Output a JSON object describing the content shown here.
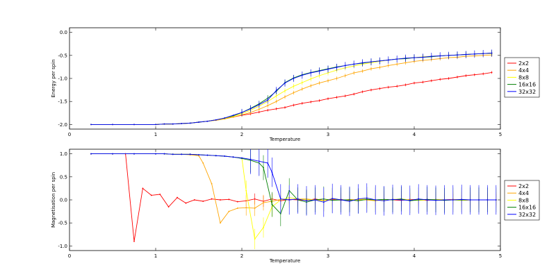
{
  "chart_data": [
    {
      "type": "line",
      "xlabel": "Temperature",
      "ylabel": "Energy per spin",
      "xlim": [
        0,
        5
      ],
      "ylim": [
        -2.1,
        0.1
      ],
      "xticks": [
        0,
        1,
        2,
        3,
        4,
        5
      ],
      "yticks": [
        0.0,
        -0.5,
        -1.0,
        -1.5,
        -2.0
      ],
      "xtick_labels": [
        "0",
        "1",
        "2",
        "3",
        "4",
        "5"
      ],
      "ytick_labels": [
        "0.0",
        "-0.5",
        "-1.0",
        "-1.5",
        "-2.0"
      ],
      "legend_position": "right",
      "series": [
        {
          "name": "2x2",
          "color": "#ff0000",
          "x": [
            0.25,
            0.5,
            0.75,
            1.0,
            1.1,
            1.2,
            1.3,
            1.4,
            1.5,
            1.6,
            1.7,
            1.8,
            1.9,
            2.0,
            2.1,
            2.2,
            2.3,
            2.4,
            2.5,
            2.6,
            2.7,
            2.8,
            2.9,
            3.0,
            3.1,
            3.2,
            3.3,
            3.4,
            3.5,
            3.6,
            3.7,
            3.8,
            3.9,
            4.0,
            4.1,
            4.2,
            4.3,
            4.4,
            4.5,
            4.6,
            4.7,
            4.8,
            4.9
          ],
          "y": [
            -2.0,
            -2.0,
            -2.0,
            -2.0,
            -1.99,
            -1.99,
            -1.98,
            -1.97,
            -1.95,
            -1.93,
            -1.9,
            -1.87,
            -1.84,
            -1.8,
            -1.77,
            -1.73,
            -1.69,
            -1.66,
            -1.63,
            -1.58,
            -1.54,
            -1.51,
            -1.48,
            -1.44,
            -1.41,
            -1.38,
            -1.34,
            -1.29,
            -1.25,
            -1.22,
            -1.19,
            -1.17,
            -1.14,
            -1.1,
            -1.08,
            -1.05,
            -1.02,
            -1.0,
            -0.97,
            -0.94,
            -0.92,
            -0.9,
            -0.87
          ]
        },
        {
          "name": "4x4",
          "color": "#ffa500",
          "x": [
            0.25,
            0.5,
            0.75,
            1.0,
            1.1,
            1.2,
            1.3,
            1.4,
            1.5,
            1.6,
            1.7,
            1.8,
            1.9,
            2.0,
            2.1,
            2.2,
            2.3,
            2.4,
            2.5,
            2.6,
            2.7,
            2.8,
            2.9,
            3.0,
            3.1,
            3.2,
            3.3,
            3.4,
            3.5,
            3.6,
            3.7,
            3.8,
            3.9,
            4.0,
            4.1,
            4.2,
            4.3,
            4.4,
            4.5,
            4.6,
            4.7,
            4.8,
            4.9
          ],
          "y": [
            -2.0,
            -2.0,
            -2.0,
            -2.0,
            -1.99,
            -1.99,
            -1.98,
            -1.97,
            -1.95,
            -1.93,
            -1.91,
            -1.88,
            -1.84,
            -1.79,
            -1.74,
            -1.67,
            -1.59,
            -1.5,
            -1.4,
            -1.31,
            -1.23,
            -1.16,
            -1.1,
            -1.05,
            -1.0,
            -0.94,
            -0.88,
            -0.84,
            -0.79,
            -0.76,
            -0.72,
            -0.69,
            -0.66,
            -0.63,
            -0.61,
            -0.59,
            -0.57,
            -0.55,
            -0.54,
            -0.52,
            -0.51,
            -0.5,
            -0.49
          ]
        },
        {
          "name": "8x8",
          "color": "#ffff00",
          "x": [
            0.25,
            0.5,
            0.75,
            1.0,
            1.1,
            1.2,
            1.3,
            1.4,
            1.5,
            1.6,
            1.7,
            1.8,
            1.9,
            2.0,
            2.1,
            2.2,
            2.3,
            2.4,
            2.5,
            2.6,
            2.7,
            2.8,
            2.9,
            3.0,
            3.1,
            3.2,
            3.3,
            3.4,
            3.5,
            3.6,
            3.7,
            3.8,
            3.9,
            4.0,
            4.1,
            4.2,
            4.3,
            4.4,
            4.5,
            4.6,
            4.7,
            4.8,
            4.9
          ],
          "y": [
            -2.0,
            -2.0,
            -2.0,
            -2.0,
            -1.99,
            -1.99,
            -1.98,
            -1.97,
            -1.95,
            -1.93,
            -1.9,
            -1.87,
            -1.82,
            -1.76,
            -1.69,
            -1.6,
            -1.5,
            -1.38,
            -1.27,
            -1.17,
            -1.09,
            -1.01,
            -0.94,
            -0.88,
            -0.82,
            -0.77,
            -0.73,
            -0.69,
            -0.66,
            -0.63,
            -0.6,
            -0.58,
            -0.56,
            -0.55,
            -0.53,
            -0.52,
            -0.51,
            -0.5,
            -0.49,
            -0.48,
            -0.47,
            -0.46,
            -0.46
          ]
        },
        {
          "name": "16x16",
          "color": "#008000",
          "x": [
            0.25,
            0.5,
            0.75,
            1.0,
            1.1,
            1.2,
            1.3,
            1.4,
            1.5,
            1.6,
            1.7,
            1.8,
            1.9,
            2.0,
            2.1,
            2.2,
            2.3,
            2.4,
            2.5,
            2.6,
            2.7,
            2.8,
            2.9,
            3.0,
            3.1,
            3.2,
            3.3,
            3.4,
            3.5,
            3.6,
            3.7,
            3.8,
            3.9,
            4.0,
            4.1,
            4.2,
            4.3,
            4.4,
            4.5,
            4.6,
            4.7,
            4.8,
            4.9
          ],
          "y": [
            -2.0,
            -2.0,
            -2.0,
            -2.0,
            -1.99,
            -1.99,
            -1.98,
            -1.97,
            -1.95,
            -1.93,
            -1.9,
            -1.86,
            -1.81,
            -1.74,
            -1.65,
            -1.55,
            -1.43,
            -1.28,
            -1.09,
            -0.99,
            -0.92,
            -0.87,
            -0.83,
            -0.79,
            -0.75,
            -0.72,
            -0.69,
            -0.67,
            -0.64,
            -0.62,
            -0.6,
            -0.58,
            -0.57,
            -0.55,
            -0.54,
            -0.53,
            -0.51,
            -0.5,
            -0.49,
            -0.48,
            -0.47,
            -0.46,
            -0.45
          ]
        },
        {
          "name": "32x32",
          "color": "#0000ff",
          "x": [
            0.25,
            0.5,
            0.75,
            1.0,
            1.1,
            1.2,
            1.3,
            1.4,
            1.5,
            1.6,
            1.7,
            1.8,
            1.9,
            2.0,
            2.1,
            2.2,
            2.3,
            2.4,
            2.5,
            2.6,
            2.7,
            2.8,
            2.9,
            3.0,
            3.1,
            3.2,
            3.3,
            3.4,
            3.5,
            3.6,
            3.7,
            3.8,
            3.9,
            4.0,
            4.1,
            4.2,
            4.3,
            4.4,
            4.5,
            4.6,
            4.7,
            4.8,
            4.9
          ],
          "y": [
            -2.0,
            -2.0,
            -2.0,
            -2.0,
            -1.99,
            -1.99,
            -1.98,
            -1.97,
            -1.95,
            -1.93,
            -1.9,
            -1.86,
            -1.8,
            -1.74,
            -1.66,
            -1.57,
            -1.47,
            -1.26,
            -1.1,
            -1.0,
            -0.93,
            -0.88,
            -0.84,
            -0.8,
            -0.76,
            -0.72,
            -0.69,
            -0.66,
            -0.64,
            -0.62,
            -0.6,
            -0.58,
            -0.56,
            -0.55,
            -0.54,
            -0.52,
            -0.51,
            -0.5,
            -0.49,
            -0.48,
            -0.47,
            -0.46,
            -0.45
          ]
        }
      ]
    },
    {
      "type": "line",
      "xlabel": "Temperature",
      "ylabel": "Magnetisation per spin",
      "xlim": [
        0,
        5
      ],
      "ylim": [
        -1.1,
        1.1
      ],
      "xticks": [
        0,
        1,
        2,
        3,
        4,
        5
      ],
      "yticks": [
        1.0,
        0.5,
        0.0,
        -0.5,
        -1.0
      ],
      "xtick_labels": [
        "0",
        "1",
        "2",
        "3",
        "4",
        "5"
      ],
      "ytick_labels": [
        "1.0",
        "0.5",
        "0.0",
        "-0.5",
        "-1.0"
      ],
      "legend_position": "right",
      "series": [
        {
          "name": "2x2",
          "color": "#ff0000",
          "x": [
            0.25,
            0.5,
            0.65,
            0.75,
            0.85,
            0.95,
            1.05,
            1.15,
            1.25,
            1.35,
            1.45,
            1.55,
            1.65,
            1.75,
            1.85,
            1.95,
            2.05,
            2.15,
            2.25,
            2.35,
            2.45,
            2.55,
            2.65,
            2.75,
            2.85,
            2.95,
            3.05,
            3.15,
            3.25,
            3.35,
            3.45,
            3.55,
            3.65,
            3.75,
            3.85,
            3.95,
            4.05,
            4.15,
            4.25,
            4.35,
            4.45,
            4.55,
            4.65,
            4.75,
            4.85,
            4.95
          ],
          "y": [
            1.0,
            1.0,
            1.0,
            -0.9,
            0.25,
            0.1,
            0.12,
            -0.15,
            0.05,
            -0.07,
            0.0,
            -0.03,
            0.02,
            0.0,
            0.01,
            -0.04,
            -0.02,
            0.02,
            -0.03,
            0.02,
            -0.02,
            0.01,
            0.0,
            -0.01,
            0.02,
            -0.01,
            0.0,
            0.01,
            -0.02,
            0.01,
            0.0,
            -0.01,
            0.01,
            0.0,
            -0.01,
            0.01,
            0.0,
            -0.01,
            0.01,
            0.0,
            0.01,
            -0.01,
            0.0,
            0.0,
            0.0,
            0.0
          ]
        },
        {
          "name": "4x4",
          "color": "#ffa500",
          "x": [
            0.25,
            0.5,
            0.75,
            1.0,
            1.1,
            1.2,
            1.3,
            1.4,
            1.5,
            1.55,
            1.65,
            1.75,
            1.85,
            1.95,
            2.05,
            2.15,
            2.25,
            2.35,
            2.45,
            2.55,
            2.65,
            2.75,
            2.85,
            2.95,
            3.05,
            3.15,
            3.25,
            3.35,
            3.45,
            3.55,
            3.65,
            3.75,
            3.85,
            3.95,
            4.05,
            4.15,
            4.25,
            4.35,
            4.45,
            4.55,
            4.65,
            4.75,
            4.85,
            4.95
          ],
          "y": [
            1.0,
            1.0,
            1.0,
            1.0,
            1.0,
            0.99,
            0.99,
            0.98,
            0.96,
            0.8,
            0.35,
            -0.5,
            -0.25,
            -0.18,
            -0.17,
            -0.18,
            -0.06,
            -0.03,
            0.01,
            0.0,
            0.02,
            0.02,
            0.0,
            -0.01,
            0.02,
            -0.01,
            0.01,
            0.0,
            0.0,
            -0.02,
            0.01,
            0.0,
            0.02,
            -0.01,
            0.0,
            0.01,
            0.0,
            -0.01,
            0.01,
            0.0,
            0.0,
            0.0,
            0.0,
            0.0
          ]
        },
        {
          "name": "8x8",
          "color": "#ffff00",
          "x": [
            0.25,
            0.5,
            0.75,
            1.0,
            1.1,
            1.2,
            1.3,
            1.4,
            1.5,
            1.6,
            1.7,
            1.8,
            1.9,
            2.0,
            2.05,
            2.15,
            2.25,
            2.35,
            2.45,
            2.55,
            2.65,
            2.75,
            2.85,
            2.95,
            3.05,
            3.15,
            3.25,
            3.35,
            3.45,
            3.55,
            3.65,
            3.75,
            3.85,
            3.95,
            4.05,
            4.15,
            4.25,
            4.35,
            4.45,
            4.55,
            4.65,
            4.75,
            4.85,
            4.95
          ],
          "y": [
            1.0,
            1.0,
            1.0,
            1.0,
            1.0,
            0.99,
            0.99,
            0.99,
            0.98,
            0.97,
            0.96,
            0.95,
            0.93,
            0.91,
            0.2,
            -0.85,
            -0.6,
            -0.15,
            0.0,
            0.05,
            0.02,
            0.0,
            0.0,
            -0.02,
            0.03,
            0.0,
            -0.02,
            0.01,
            0.02,
            -0.01,
            0.0,
            0.01,
            0.02,
            0.0,
            -0.01,
            0.0,
            0.01,
            0.0,
            0.0,
            -0.01,
            0.0,
            0.0,
            0.0,
            0.0
          ]
        },
        {
          "name": "16x16",
          "color": "#008000",
          "x": [
            0.25,
            0.5,
            0.75,
            1.0,
            1.1,
            1.2,
            1.3,
            1.4,
            1.5,
            1.6,
            1.7,
            1.8,
            1.9,
            2.0,
            2.1,
            2.2,
            2.25,
            2.35,
            2.45,
            2.55,
            2.65,
            2.75,
            2.85,
            2.95,
            3.05,
            3.15,
            3.25,
            3.35,
            3.45,
            3.55,
            3.65,
            3.75,
            3.85,
            3.95,
            4.05,
            4.15,
            4.25,
            4.35,
            4.45,
            4.55,
            4.65,
            4.75,
            4.85,
            4.95
          ],
          "y": [
            1.0,
            1.0,
            1.0,
            1.0,
            1.0,
            0.99,
            0.99,
            0.99,
            0.98,
            0.97,
            0.96,
            0.95,
            0.93,
            0.9,
            0.86,
            0.8,
            0.7,
            -0.1,
            -0.3,
            0.2,
            0.0,
            -0.05,
            0.0,
            0.02,
            -0.01,
            0.0,
            0.0,
            -0.02,
            0.01,
            0.0,
            0.01,
            0.0,
            0.02,
            -0.02,
            0.0,
            0.01,
            0.0,
            -0.01,
            0.0,
            0.0,
            0.0,
            0.0,
            0.0,
            0.0
          ]
        },
        {
          "name": "32x32",
          "color": "#0000ff",
          "x": [
            0.25,
            0.5,
            0.75,
            1.0,
            1.1,
            1.2,
            1.3,
            1.4,
            1.5,
            1.6,
            1.7,
            1.8,
            1.9,
            2.0,
            2.1,
            2.2,
            2.3,
            2.35,
            2.45,
            2.55,
            2.65,
            2.75,
            2.85,
            2.95,
            3.05,
            3.15,
            3.25,
            3.35,
            3.45,
            3.55,
            3.65,
            3.75,
            3.85,
            3.95,
            4.05,
            4.15,
            4.25,
            4.35,
            4.45,
            4.55,
            4.65,
            4.75,
            4.85,
            4.95
          ],
          "y": [
            1.0,
            1.0,
            1.0,
            1.0,
            1.0,
            0.99,
            0.99,
            0.99,
            0.98,
            0.97,
            0.96,
            0.95,
            0.93,
            0.91,
            0.88,
            0.84,
            0.8,
            0.6,
            0.02,
            0.0,
            0.02,
            -0.02,
            0.0,
            -0.05,
            0.03,
            0.0,
            -0.03,
            0.02,
            0.04,
            0.0,
            -0.02,
            0.01,
            0.0,
            -0.01,
            0.02,
            0.0,
            -0.01,
            0.0,
            0.0,
            0.01,
            0.0,
            0.0,
            0.0,
            0.0
          ]
        }
      ]
    }
  ]
}
